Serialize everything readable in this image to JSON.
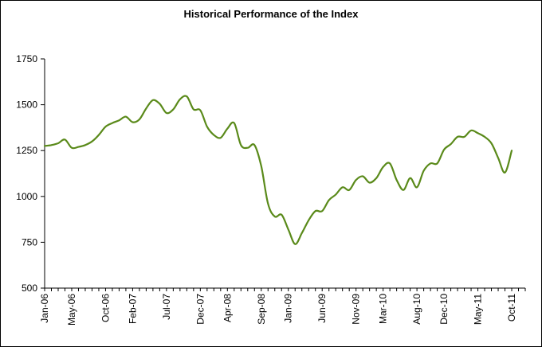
{
  "chart_data": {
    "type": "line",
    "title": "Historical Performance of the Index",
    "xlabel": "",
    "ylabel": "",
    "ylim": [
      500,
      1750
    ],
    "yticks": [
      500,
      750,
      1000,
      1250,
      1500,
      1750
    ],
    "xlim": [
      "2006-01",
      "2011-12"
    ],
    "xticks": [
      "Jan-06",
      "May-06",
      "Oct-06",
      "Feb-07",
      "Jul-07",
      "Dec-07",
      "Apr-08",
      "Sep-08",
      "Jan-09",
      "Jun-09",
      "Nov-09",
      "Mar-10",
      "Aug-10",
      "Dec-10",
      "May-11",
      "Oct-11"
    ],
    "grid": false,
    "legend": "none",
    "colors": {
      "line": "#5a8a1a",
      "axis": "#000000",
      "background": "#ffffff"
    },
    "series": [
      {
        "values": [
          [
            "2006-01",
            1275
          ],
          [
            "2006-02",
            1280
          ],
          [
            "2006-03",
            1290
          ],
          [
            "2006-04",
            1310
          ],
          [
            "2006-05",
            1265
          ],
          [
            "2006-06",
            1270
          ],
          [
            "2006-07",
            1280
          ],
          [
            "2006-08",
            1300
          ],
          [
            "2006-09",
            1335
          ],
          [
            "2006-10",
            1380
          ],
          [
            "2006-11",
            1400
          ],
          [
            "2006-12",
            1415
          ],
          [
            "2007-01",
            1435
          ],
          [
            "2007-02",
            1405
          ],
          [
            "2007-03",
            1420
          ],
          [
            "2007-04",
            1480
          ],
          [
            "2007-05",
            1525
          ],
          [
            "2007-06",
            1505
          ],
          [
            "2007-07",
            1455
          ],
          [
            "2007-08",
            1475
          ],
          [
            "2007-09",
            1530
          ],
          [
            "2007-10",
            1545
          ],
          [
            "2007-11",
            1475
          ],
          [
            "2007-12",
            1470
          ],
          [
            "2008-01",
            1380
          ],
          [
            "2008-02",
            1335
          ],
          [
            "2008-03",
            1320
          ],
          [
            "2008-04",
            1370
          ],
          [
            "2008-05",
            1400
          ],
          [
            "2008-06",
            1280
          ],
          [
            "2008-07",
            1265
          ],
          [
            "2008-08",
            1280
          ],
          [
            "2008-09",
            1165
          ],
          [
            "2008-10",
            960
          ],
          [
            "2008-11",
            890
          ],
          [
            "2008-12",
            900
          ],
          [
            "2009-01",
            820
          ],
          [
            "2009-02",
            740
          ],
          [
            "2009-03",
            800
          ],
          [
            "2009-04",
            870
          ],
          [
            "2009-05",
            920
          ],
          [
            "2009-06",
            920
          ],
          [
            "2009-07",
            980
          ],
          [
            "2009-08",
            1010
          ],
          [
            "2009-09",
            1050
          ],
          [
            "2009-10",
            1035
          ],
          [
            "2009-11",
            1090
          ],
          [
            "2009-12",
            1110
          ],
          [
            "2010-01",
            1075
          ],
          [
            "2010-02",
            1100
          ],
          [
            "2010-03",
            1160
          ],
          [
            "2010-04",
            1180
          ],
          [
            "2010-05",
            1090
          ],
          [
            "2010-06",
            1035
          ],
          [
            "2010-07",
            1100
          ],
          [
            "2010-08",
            1050
          ],
          [
            "2010-09",
            1140
          ],
          [
            "2010-10",
            1180
          ],
          [
            "2010-11",
            1180
          ],
          [
            "2010-12",
            1255
          ],
          [
            "2011-01",
            1285
          ],
          [
            "2011-02",
            1325
          ],
          [
            "2011-03",
            1325
          ],
          [
            "2011-04",
            1360
          ],
          [
            "2011-05",
            1345
          ],
          [
            "2011-06",
            1325
          ],
          [
            "2011-07",
            1290
          ],
          [
            "2011-08",
            1210
          ],
          [
            "2011-09",
            1130
          ],
          [
            "2011-10",
            1250
          ]
        ]
      }
    ]
  }
}
